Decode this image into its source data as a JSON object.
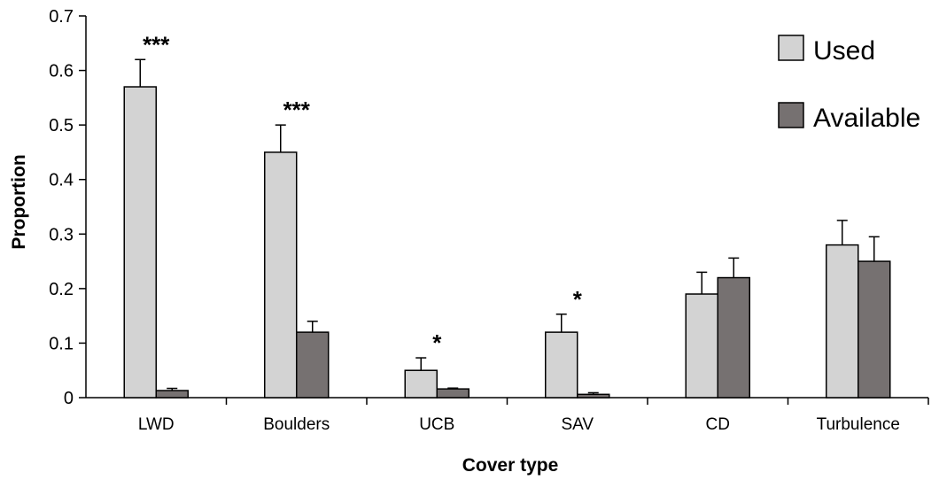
{
  "chart_data": {
    "type": "bar",
    "xlabel": "Cover type",
    "ylabel": "Proportion",
    "ylim": [
      0,
      0.7
    ],
    "yticks": [
      0,
      0.1,
      0.2,
      0.3,
      0.4,
      0.5,
      0.6,
      0.7
    ],
    "ytick_labels": [
      "0",
      "0.1",
      "0.2",
      "0.3",
      "0.4",
      "0.5",
      "0.6",
      "0.7"
    ],
    "categories": [
      "LWD",
      "Boulders",
      "UCB",
      "SAV",
      "CD",
      "Turbulence"
    ],
    "series": [
      {
        "name": "Used",
        "color": "#d3d3d3",
        "values": [
          0.57,
          0.45,
          0.05,
          0.12,
          0.19,
          0.28
        ],
        "errors": [
          0.05,
          0.05,
          0.023,
          0.033,
          0.04,
          0.045
        ]
      },
      {
        "name": "Available",
        "color": "#767171",
        "values": [
          0.013,
          0.12,
          0.016,
          0.006,
          0.22,
          0.25
        ],
        "errors": [
          0.004,
          0.02,
          0.0015,
          0.003,
          0.036,
          0.045
        ]
      }
    ],
    "significance": [
      "***",
      "***",
      "*",
      "*",
      "",
      ""
    ],
    "legend_position": "top-right",
    "grid": false
  }
}
